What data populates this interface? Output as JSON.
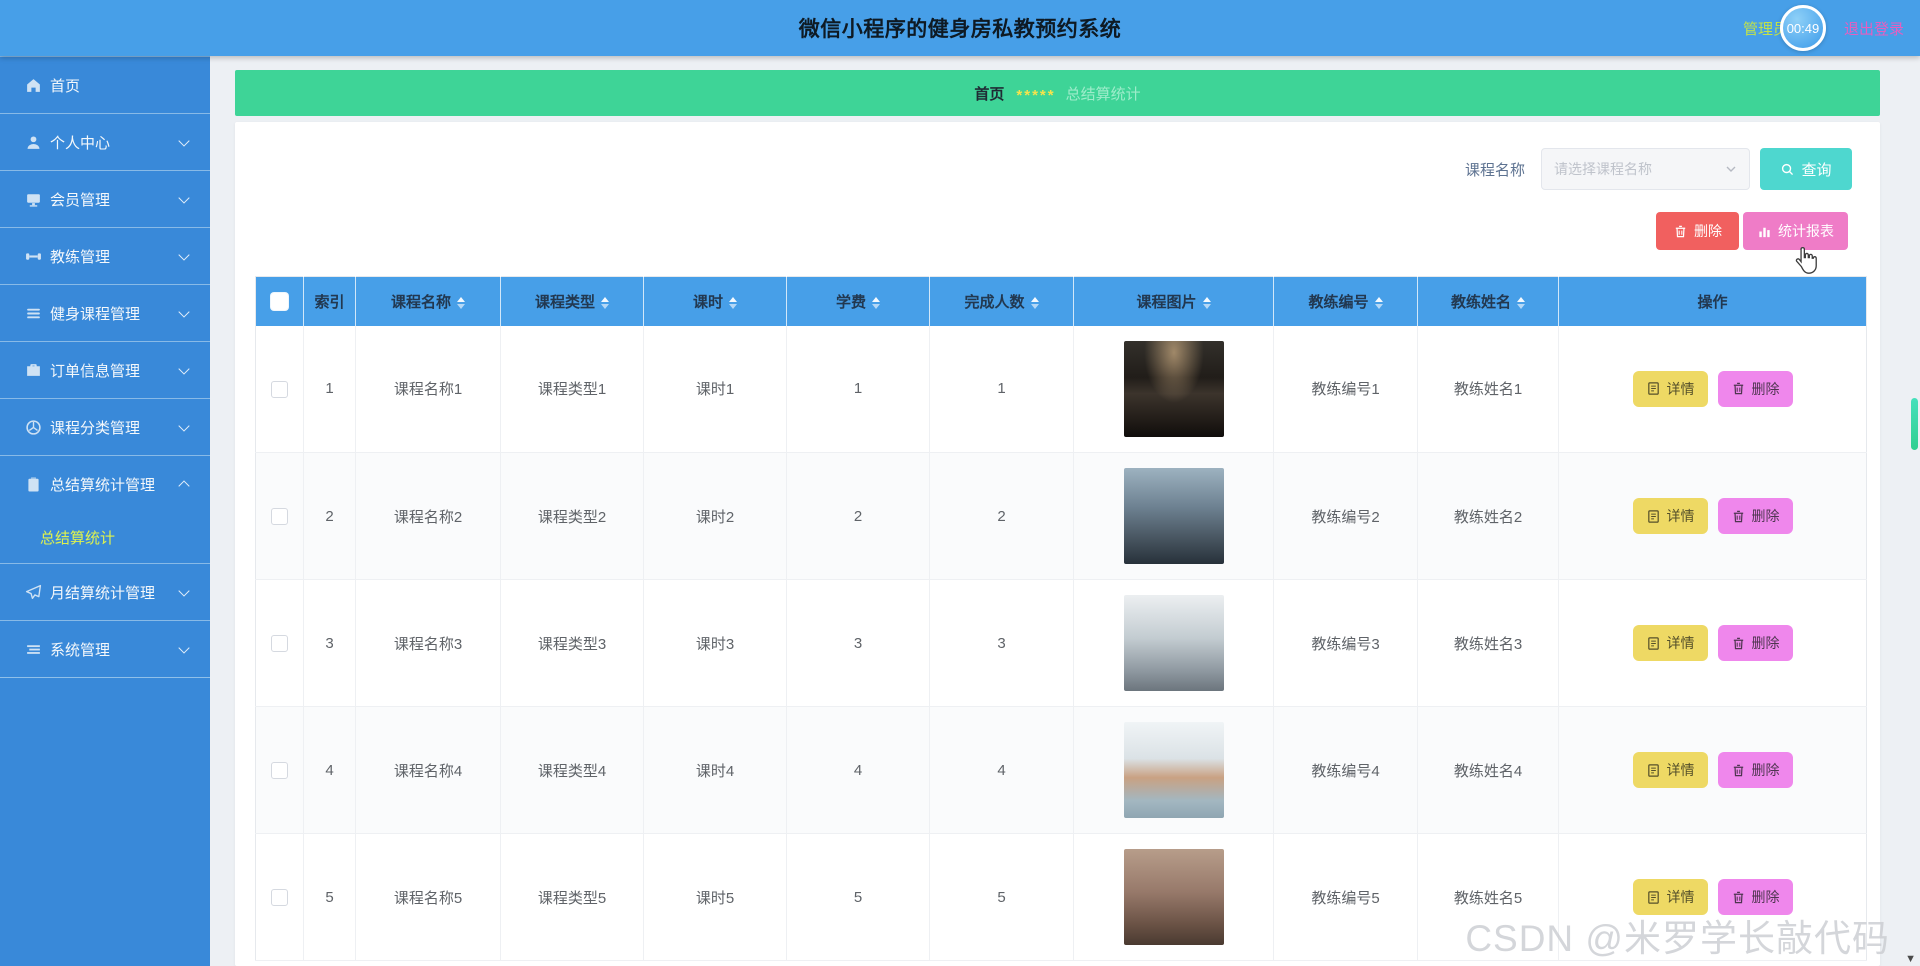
{
  "header": {
    "title": "微信小程序的健身房私教预约系统",
    "user_role": "管理员",
    "timer": "00:49",
    "logout_label": "退出登录"
  },
  "sidebar": {
    "items": [
      {
        "id": "home",
        "label": "首页",
        "icon": "home-icon",
        "expandable": false
      },
      {
        "id": "profile",
        "label": "个人中心",
        "icon": "user-icon",
        "expandable": true
      },
      {
        "id": "members",
        "label": "会员管理",
        "icon": "member-card-icon",
        "expandable": true
      },
      {
        "id": "trainers",
        "label": "教练管理",
        "icon": "dumbbell-icon",
        "expandable": true
      },
      {
        "id": "courses",
        "label": "健身课程管理",
        "icon": "list-icon",
        "expandable": true
      },
      {
        "id": "orders",
        "label": "订单信息管理",
        "icon": "briefcase-icon",
        "expandable": true
      },
      {
        "id": "categories",
        "label": "课程分类管理",
        "icon": "clock-icon",
        "expandable": true
      },
      {
        "id": "summary-stats",
        "label": "总结算统计管理",
        "icon": "clipboard-icon",
        "expandable": true,
        "expanded": true,
        "children": [
          {
            "label": "总结算统计",
            "active": true
          }
        ]
      },
      {
        "id": "monthly-stats",
        "label": "月结算统计管理",
        "icon": "paper-plane-icon",
        "expandable": true
      },
      {
        "id": "system",
        "label": "系统管理",
        "icon": "menu-icon",
        "expandable": true
      }
    ]
  },
  "breadcrumb": {
    "home": "首页",
    "stars": "*****",
    "current": "总结算统计"
  },
  "filter": {
    "label": "课程名称",
    "placeholder": "请选择课程名称",
    "search_button": "查询"
  },
  "toolbar": {
    "delete_button": "删除",
    "report_button": "统计报表"
  },
  "table": {
    "headers": [
      {
        "label": "索引",
        "sortable": false
      },
      {
        "label": "课程名称",
        "sortable": true
      },
      {
        "label": "课程类型",
        "sortable": true
      },
      {
        "label": "课时",
        "sortable": true
      },
      {
        "label": "学费",
        "sortable": true
      },
      {
        "label": "完成人数",
        "sortable": true
      },
      {
        "label": "课程图片",
        "sortable": true
      },
      {
        "label": "教练编号",
        "sortable": true
      },
      {
        "label": "教练姓名",
        "sortable": true
      },
      {
        "label": "操作",
        "sortable": false
      }
    ],
    "detail_button": "详情",
    "delete_button": "删除",
    "rows": [
      {
        "index": "1",
        "course_name": "课程名称1",
        "course_type": "课程类型1",
        "hours": "课时1",
        "fee": "1",
        "completed": "1",
        "image": "gym-photo-1",
        "trainer_id": "教练编号1",
        "trainer_name": "教练姓名1"
      },
      {
        "index": "2",
        "course_name": "课程名称2",
        "course_type": "课程类型2",
        "hours": "课时2",
        "fee": "2",
        "completed": "2",
        "image": "gym-photo-2",
        "trainer_id": "教练编号2",
        "trainer_name": "教练姓名2"
      },
      {
        "index": "3",
        "course_name": "课程名称3",
        "course_type": "课程类型3",
        "hours": "课时3",
        "fee": "3",
        "completed": "3",
        "image": "gym-photo-3",
        "trainer_id": "教练编号3",
        "trainer_name": "教练姓名3"
      },
      {
        "index": "4",
        "course_name": "课程名称4",
        "course_type": "课程类型4",
        "hours": "课时4",
        "fee": "4",
        "completed": "4",
        "image": "gym-photo-4",
        "trainer_id": "教练编号4",
        "trainer_name": "教练姓名4"
      },
      {
        "index": "5",
        "course_name": "课程名称5",
        "course_type": "课程类型5",
        "hours": "课时5",
        "fee": "5",
        "completed": "5",
        "image": "gym-photo-5",
        "trainer_id": "教练编号5",
        "trainer_name": "教练姓名5"
      }
    ]
  },
  "watermark": "CSDN @米罗学长敲代码",
  "colors": {
    "header_blue": "#479fe8",
    "sidebar_blue": "#3989d9",
    "breadcrumb_green": "#3ed497",
    "query_teal": "#4ed7cf",
    "delete_red": "#f1605f",
    "report_pink": "#ef7cc7",
    "detail_yellow": "#eed964",
    "row_delete_violet": "#ef87ec",
    "submenu_active_yellow": "#dff24e",
    "scrollbar_green": "#3fd79b"
  }
}
